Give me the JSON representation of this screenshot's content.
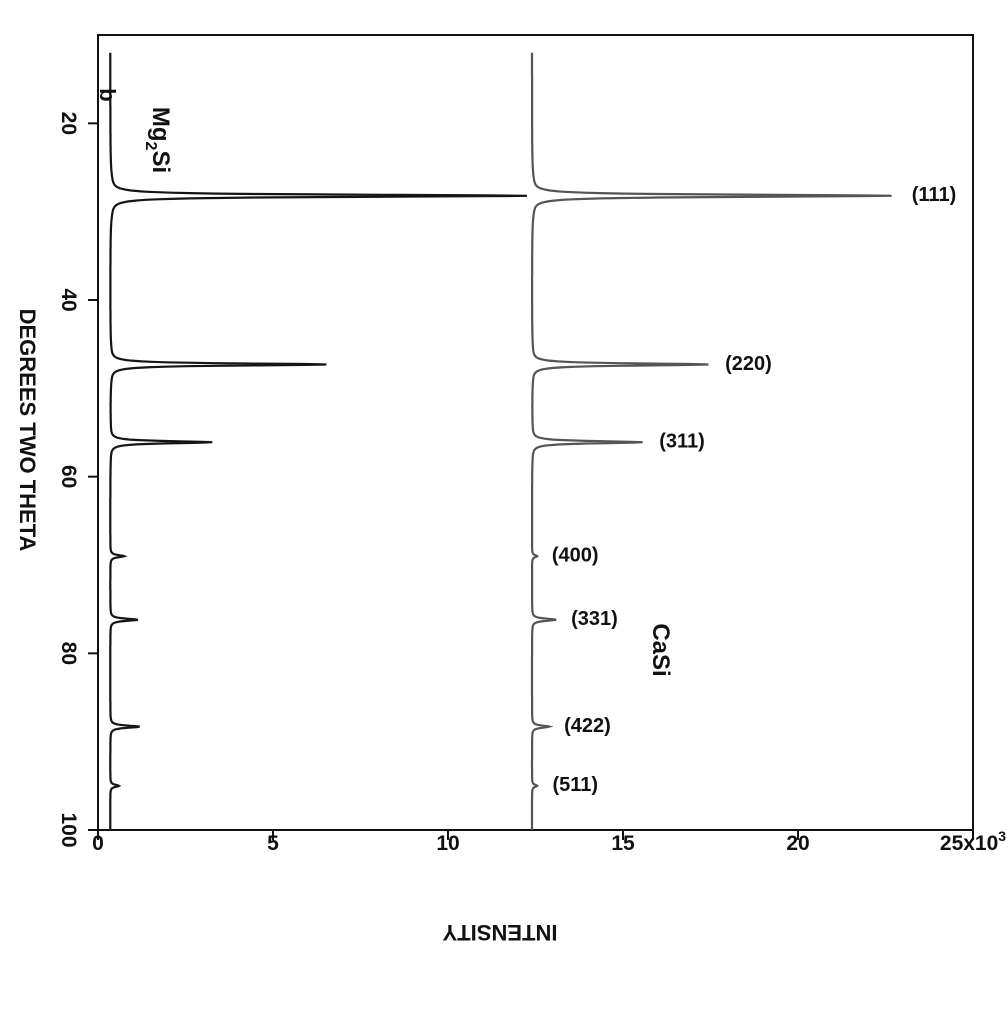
{
  "chart_data": {
    "type": "line",
    "panel_label": "b",
    "xlabel": "DEGREES TWO THETA",
    "ylabel": "INTENSITY",
    "xlim": [
      10,
      100
    ],
    "ylim": [
      0,
      25000
    ],
    "x_ticks": [
      {
        "value": 20,
        "label": "20"
      },
      {
        "value": 40,
        "label": "40"
      },
      {
        "value": 60,
        "label": "60"
      },
      {
        "value": 80,
        "label": "80"
      },
      {
        "value": 100,
        "label": "100"
      }
    ],
    "y_ticks": [
      {
        "value": 0,
        "label": "0"
      },
      {
        "value": 5000,
        "label": "5"
      },
      {
        "value": 10000,
        "label": "10"
      },
      {
        "value": 15000,
        "label": "15"
      },
      {
        "value": 20000,
        "label": "20"
      },
      {
        "value": 25000,
        "label": "25x10"
      }
    ],
    "y_tick_exponent": "3",
    "grid": false,
    "series": [
      {
        "name": "Mg2Si",
        "display_main": "Mg",
        "display_sub": "2",
        "display_tail": "Si",
        "color": "#555555",
        "baseline": 12400,
        "peaks": [
          {
            "x": 28.2,
            "y": 22800,
            "label": "(111)"
          },
          {
            "x": 47.3,
            "y": 17500,
            "label": "(220)"
          },
          {
            "x": 56.1,
            "y": 15600,
            "label": "(311)"
          },
          {
            "x": 69.0,
            "y": 12550,
            "label": "(400)"
          },
          {
            "x": 76.2,
            "y": 13100,
            "label": "(331)"
          },
          {
            "x": 88.3,
            "y": 12900,
            "label": "(422)"
          },
          {
            "x": 95.0,
            "y": 12550,
            "label": "(511)"
          }
        ]
      },
      {
        "name": "CaSi",
        "color": "#151515",
        "baseline": 350,
        "peaks": [
          {
            "x": 28.2,
            "y": 12400
          },
          {
            "x": 47.3,
            "y": 6600
          },
          {
            "x": 56.1,
            "y": 3300
          },
          {
            "x": 69.0,
            "y": 750
          },
          {
            "x": 76.2,
            "y": 1150
          },
          {
            "x": 88.3,
            "y": 1200
          },
          {
            "x": 95.0,
            "y": 600
          }
        ]
      }
    ]
  }
}
